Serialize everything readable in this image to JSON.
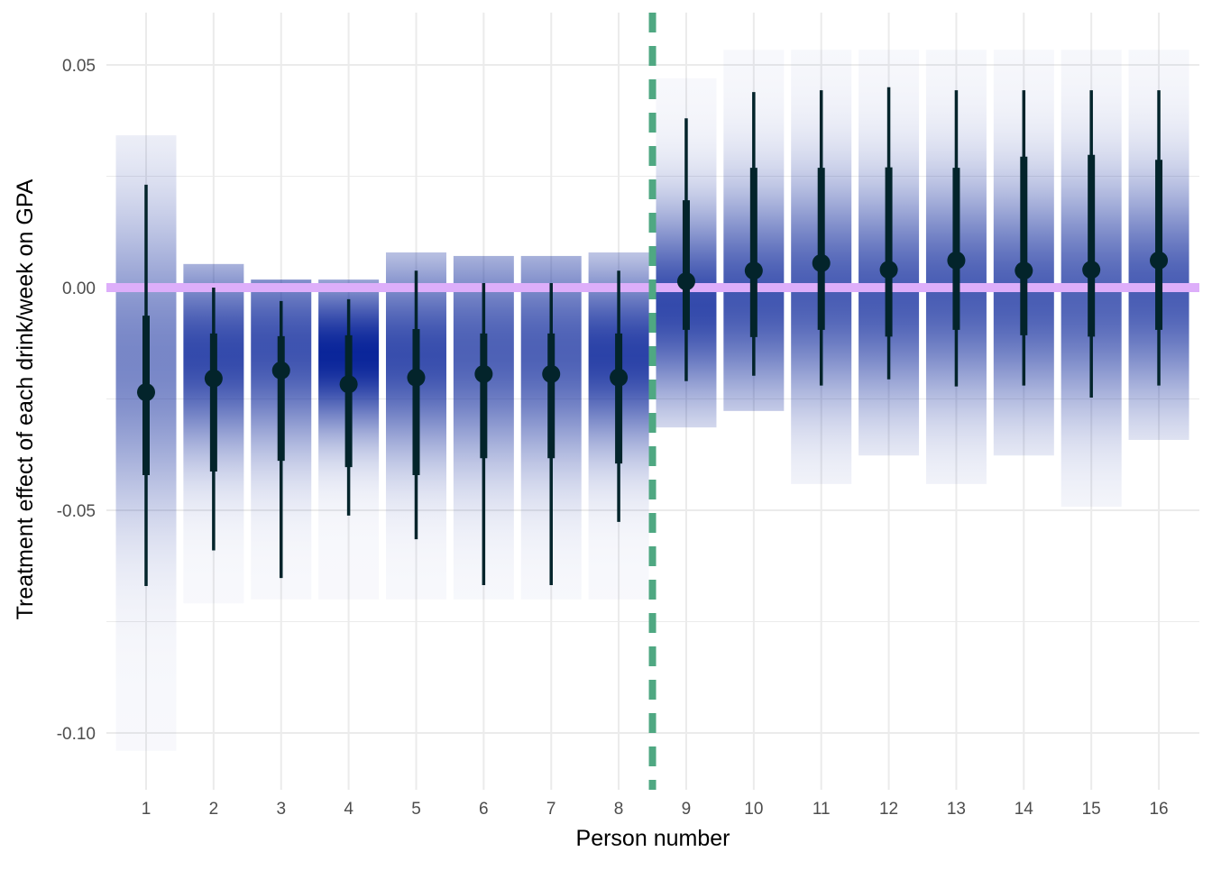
{
  "chart_data": {
    "type": "interval",
    "title": "",
    "xlabel": "Person number",
    "ylabel": "Treatment effect of each drink/week on GPA",
    "ylim": [
      -0.112,
      0.062
    ],
    "yticks": [
      0.05,
      0.0,
      -0.05,
      -0.1
    ],
    "ytick_labels": [
      "0.05",
      "0.00",
      "-0.05",
      "-0.10"
    ],
    "xtick_labels": [
      "1",
      "2",
      "3",
      "4",
      "5",
      "6",
      "7",
      "8",
      "9",
      "10",
      "11",
      "12",
      "13",
      "14",
      "15",
      "16"
    ],
    "reference_line_y": 0.0,
    "split_line_x": 8.5,
    "colors": {
      "slab": "#0a259a",
      "interval": "#03242b",
      "zero_line": "#ddaefa",
      "split_line": "#4fa882",
      "grid": "#ebebeb"
    },
    "persons": [
      {
        "x": 1,
        "point": -0.0235,
        "mode": -0.016,
        "inner": [
          -0.0421,
          -0.0063
        ],
        "outer": [
          -0.067,
          0.0231
        ],
        "slab": [
          -0.104,
          0.0342
        ]
      },
      {
        "x": 2,
        "point": -0.0204,
        "mode": -0.015,
        "inner": [
          -0.0413,
          -0.0103
        ],
        "outer": [
          -0.059,
          0.0
        ],
        "slab": [
          -0.0709,
          0.0053
        ]
      },
      {
        "x": 3,
        "point": -0.0186,
        "mode": -0.0134,
        "inner": [
          -0.0389,
          -0.0109
        ],
        "outer": [
          -0.0652,
          -0.003
        ],
        "slab": [
          -0.07,
          0.0018
        ]
      },
      {
        "x": 4,
        "point": -0.0217,
        "mode": -0.015,
        "inner": [
          -0.0403,
          -0.0107
        ],
        "outer": [
          -0.0512,
          -0.0026
        ],
        "slab": [
          -0.07,
          0.0018
        ]
      },
      {
        "x": 5,
        "point": -0.0202,
        "mode": -0.015,
        "inner": [
          -0.0421,
          -0.0093
        ],
        "outer": [
          -0.0565,
          0.0038
        ],
        "slab": [
          -0.07,
          0.0079
        ]
      },
      {
        "x": 6,
        "point": -0.0194,
        "mode": -0.014,
        "inner": [
          -0.0383,
          -0.0103
        ],
        "outer": [
          -0.0668,
          0.001
        ],
        "slab": [
          -0.07,
          0.0071
        ]
      },
      {
        "x": 7,
        "point": -0.0194,
        "mode": -0.014,
        "inner": [
          -0.0383,
          -0.0103
        ],
        "outer": [
          -0.0668,
          0.001
        ],
        "slab": [
          -0.07,
          0.0071
        ]
      },
      {
        "x": 8,
        "point": -0.0202,
        "mode": -0.015,
        "inner": [
          -0.0395,
          -0.0103
        ],
        "outer": [
          -0.0526,
          0.0038
        ],
        "slab": [
          -0.07,
          0.0079
        ]
      },
      {
        "x": 9,
        "point": 0.0014,
        "mode": -0.004,
        "inner": [
          -0.0095,
          0.0196
        ],
        "outer": [
          -0.021,
          0.038
        ],
        "slab": [
          -0.0314,
          0.047
        ]
      },
      {
        "x": 10,
        "point": 0.0038,
        "mode": -0.002,
        "inner": [
          -0.0111,
          0.0269
        ],
        "outer": [
          -0.0198,
          0.0439
        ],
        "slab": [
          -0.0277,
          0.0534
        ]
      },
      {
        "x": 11,
        "point": 0.0055,
        "mode": -0.001,
        "inner": [
          -0.0095,
          0.0269
        ],
        "outer": [
          -0.022,
          0.0443
        ],
        "slab": [
          -0.0441,
          0.0534
        ]
      },
      {
        "x": 12,
        "point": 0.004,
        "mode": -0.002,
        "inner": [
          -0.011,
          0.027
        ],
        "outer": [
          -0.0206,
          0.045
        ],
        "slab": [
          -0.0377,
          0.0534
        ]
      },
      {
        "x": 13,
        "point": 0.0061,
        "mode": -0.001,
        "inner": [
          -0.0095,
          0.0269
        ],
        "outer": [
          -0.0222,
          0.0443
        ],
        "slab": [
          -0.0441,
          0.0534
        ]
      },
      {
        "x": 14,
        "point": 0.0038,
        "mode": -0.002,
        "inner": [
          -0.0107,
          0.0294
        ],
        "outer": [
          -0.022,
          0.0443
        ],
        "slab": [
          -0.0377,
          0.0534
        ]
      },
      {
        "x": 15,
        "point": 0.004,
        "mode": -0.002,
        "inner": [
          -0.011,
          0.0298
        ],
        "outer": [
          -0.0247,
          0.0443
        ],
        "slab": [
          -0.0492,
          0.0534
        ]
      },
      {
        "x": 16,
        "point": 0.0061,
        "mode": -0.001,
        "inner": [
          -0.0095,
          0.0287
        ],
        "outer": [
          -0.022,
          0.0443
        ],
        "slab": [
          -0.0342,
          0.0534
        ]
      }
    ]
  }
}
